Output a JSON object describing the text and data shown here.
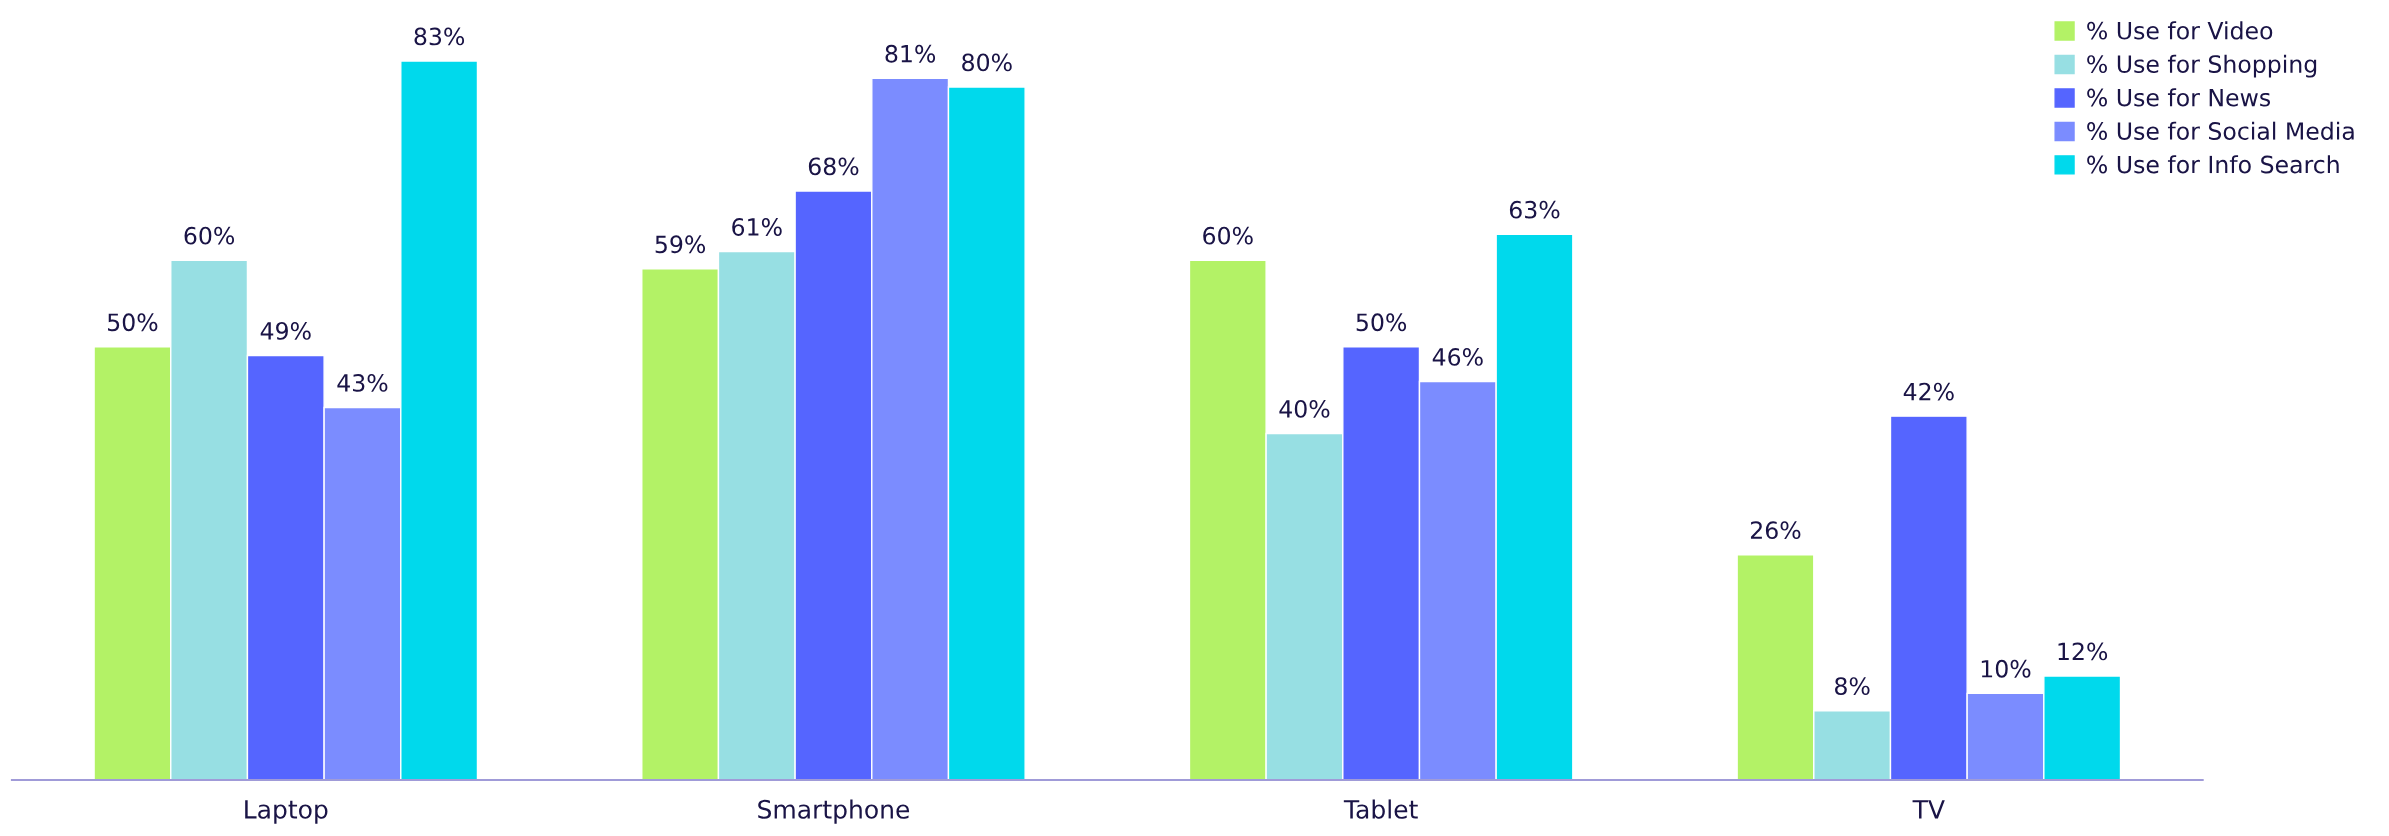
{
  "chart_data": {
    "type": "bar",
    "categories": [
      "Laptop",
      "Smartphone",
      "Tablet",
      "TV"
    ],
    "series": [
      {
        "name": "% Use for Video",
        "color": "#b3f266",
        "values": [
          50,
          59,
          60,
          26
        ],
        "value_labels": [
          "50%",
          "59%",
          "60%",
          "26%"
        ]
      },
      {
        "name": "% Use for Shopping",
        "color": "#97dfe3",
        "values": [
          60,
          61,
          40,
          8
        ],
        "value_labels": [
          "60%",
          "61%",
          "40%",
          "8%"
        ]
      },
      {
        "name": "% Use for News",
        "color": "#5565ff",
        "values": [
          49,
          68,
          50,
          42
        ],
        "value_labels": [
          "49%",
          "68%",
          "50%",
          "42%"
        ]
      },
      {
        "name": "% Use for Social Media",
        "color": "#7b8cff",
        "values": [
          43,
          81,
          46,
          10
        ],
        "value_labels": [
          "43%",
          "81%",
          "46%",
          "10%"
        ]
      },
      {
        "name": "% Use for Info Search",
        "color": "#00d9ec",
        "values": [
          83,
          80,
          63,
          12
        ],
        "value_labels": [
          "83%",
          "80%",
          "63%",
          "12%"
        ]
      }
    ],
    "legend": "top right",
    "grid": false
  }
}
